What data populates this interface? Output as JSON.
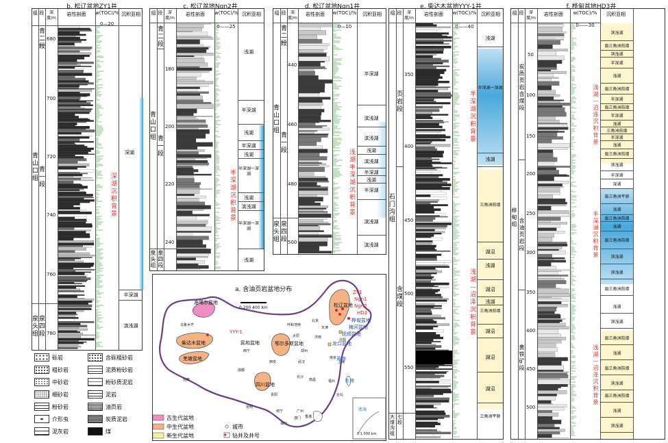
{
  "panels": {
    "b": {
      "title": "b. 松辽盆地ZY1井",
      "headers": {
        "group": "组",
        "member": "段",
        "depth": "深度/m",
        "litho": "岩性剖面",
        "toc": "w(TOC)/%",
        "toc_scale": "0—20",
        "facies": "沉积亚相"
      },
      "depths": [
        "680",
        "700",
        "720",
        "740",
        "760",
        "780"
      ],
      "units": {
        "g1": "青山口组",
        "m1": "青一段",
        "m_top": "青二段",
        "g2": "泉头组",
        "m2": "泉四段"
      },
      "facies": [
        "深湖",
        "半深湖",
        "滨浅湖"
      ],
      "background": "深湖沉积背景"
    },
    "c": {
      "title": "c. 松辽盆地Ngn2井",
      "headers": {
        "group": "组",
        "member": "段",
        "depth": "深度/m",
        "litho": "岩性剖面",
        "toc": "w(TOC)/%",
        "toc_scale": "0——25",
        "facies": "沉积亚相"
      },
      "depths": [
        "180",
        "200",
        "220",
        "240"
      ],
      "units": {
        "g1": "青山口组",
        "m_top": "青二段",
        "m1": "青一段",
        "g2": "泉头组",
        "m2": "泉四段"
      },
      "facies": [
        "浅湖",
        "半深湖",
        "浅湖",
        "半深湖",
        "浅湖",
        "半深湖一深湖",
        "浅湖",
        "滨浅湖",
        "半深湖一深湖",
        "浅湖"
      ],
      "background": "半深湖沉积背景"
    },
    "d": {
      "title": "d. 松辽盆地Ngn1井",
      "headers": {
        "group": "组",
        "member": "段",
        "depth": "深度/m",
        "litho": "岩性剖面",
        "toc": "w(TOC)/%",
        "toc_scale": "0—10",
        "facies": "沉积亚相"
      },
      "depths": [
        "440",
        "460",
        "480",
        "500"
      ],
      "units": {
        "m_top": "青二段",
        "g1": "青山口组",
        "m1": "青一段",
        "g2": "泉头组",
        "m2": "泉四段"
      },
      "facies": [
        "半深湖",
        "滨浅湖",
        "滨浅湖",
        "浅湖",
        "滨浅湖",
        "半深湖",
        "浅湖",
        "半深湖",
        "滨浅湖",
        "滨浅湖"
      ],
      "background": "浅湖半深湖沉积背景"
    },
    "e": {
      "title": "e. 柴达木盆地YYY-1井",
      "headers": {
        "group": "组",
        "member": "段",
        "depth": "深度/m",
        "litho": "岩性剖面",
        "toc": "w(TOC)/%",
        "toc_scale": "0——40",
        "facies": "沉积亚相"
      },
      "depths": [
        "350",
        "400",
        "450",
        "500",
        "550"
      ],
      "units": {
        "m1": "页岩段",
        "g1": "石门沟组",
        "m2": "含煤段",
        "g2": "大煤沟组",
        "m3": "七段"
      },
      "facies": [
        "浅湖",
        "半深湖一深湖",
        "浅湖",
        "三角洲前缘",
        "湖沼",
        "浅湖",
        "湖沼",
        "浅湖",
        "三角洲前缘",
        "湖沼",
        "湖沼",
        "湖沼",
        "三角洲平原"
      ],
      "background1": "半深湖沉积背景",
      "background2": "浅湖—沼泽沉积背景"
    },
    "f": {
      "title": "f. 桦甸盆地HD3井",
      "headers": {
        "group": "组",
        "member": "段",
        "depth": "深度/m",
        "litho": "岩性剖面",
        "toc": "w(TOC)/%",
        "toc_scale": "0——30",
        "facies": "沉积亚相"
      },
      "depths": [
        "50",
        "100",
        "150",
        "200",
        "250",
        "300",
        "350",
        "400",
        "450",
        "500"
      ],
      "units": {
        "m1": "炭质页岩含煤段",
        "g1": "桦甸组",
        "m2": "含油页岩段",
        "m3": "黄铁矿段"
      },
      "facies": [
        "滨浅湖",
        "扇三角洲前缘",
        "滨浅湖",
        "半深湖",
        "浅湖",
        "扇三角洲前缘",
        "半深湖",
        "扇三角洲前缘",
        "半深湖",
        "浅湖",
        "三角洲前缘",
        "半深湖",
        "浅湖",
        "扇三角洲前缘",
        "滨浅湖",
        "半深湖",
        "深湖",
        "扇三角洲平原",
        "浅湖",
        "扇三角洲前缘",
        "浅湖",
        "扇三角洲前缘",
        "滨浅湖"
      ],
      "background1": "浅湖—沼泽沉积背景",
      "background2": "半深湖沉积背景",
      "background3": "浅湖—沼泽沉积背景"
    }
  },
  "legend": {
    "items": [
      {
        "left": "砾岩",
        "right": "含砾粗砂岩"
      },
      {
        "left": "粗砂岩",
        "right": "泥质粉砂岩"
      },
      {
        "left": "中砂岩",
        "right": "粉砂质泥岩"
      },
      {
        "left": "细砂岩",
        "right": "泥岩"
      },
      {
        "left": "粉砂岩",
        "right": "油页岩"
      },
      {
        "left": "介形虫",
        "right": "炭质泥岩"
      },
      {
        "left": "泥灰岩",
        "right": "煤"
      }
    ]
  },
  "map": {
    "title": "a. 含油页岩盆地分布",
    "scale": "0  200 400 km",
    "basins": [
      "准噶尔盆地",
      "松辽盆地",
      "柴达木盆地",
      "鄂尔多斯盆地",
      "民和盆地",
      "羌塘盆地",
      "四川盆地",
      "桦甸盆地",
      "梅河盆地",
      "抚顺盆地",
      "龙口盆地"
    ],
    "wells": [
      "ZY1",
      "Ngn1",
      "Ngn2",
      "HD3",
      "YYY-1"
    ],
    "cities": [
      "乌鲁木齐",
      "呼和浩特",
      "北京",
      "天津",
      "济南",
      "郑州",
      "武汉",
      "长沙",
      "南昌",
      "福州",
      "广州",
      "南宁",
      "海口",
      "昆明",
      "拉萨",
      "贵阳",
      "西安",
      "西宁",
      "成都",
      "上海",
      "南京",
      "太原",
      "沈阳",
      "澳门",
      "香港",
      "台北"
    ],
    "legend": {
      "paleo": "古生代盆地",
      "meso": "中生代盆地",
      "ceno": "新生代盆地",
      "city": "城市",
      "well": "钻井及井号"
    },
    "sea_labels": [
      "黄海",
      "东海",
      "南海"
    ],
    "inset_scale": "0  1 000 km"
  }
}
